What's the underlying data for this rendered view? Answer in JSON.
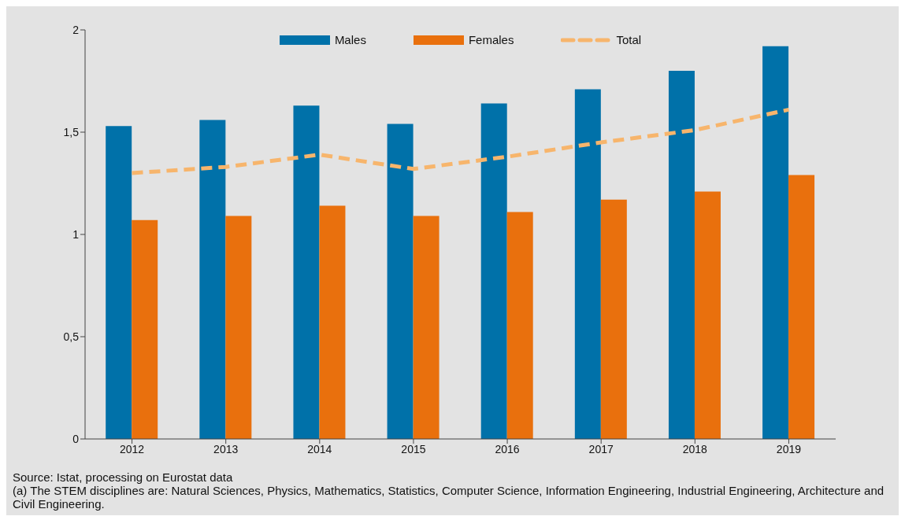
{
  "chart_data": {
    "type": "bar",
    "categories": [
      "2012",
      "2013",
      "2014",
      "2015",
      "2016",
      "2017",
      "2018",
      "2019"
    ],
    "series": [
      {
        "name": "Males",
        "color": "#0071a9",
        "values": [
          1.53,
          1.56,
          1.63,
          1.54,
          1.64,
          1.71,
          1.8,
          1.92
        ]
      },
      {
        "name": "Females",
        "color": "#e9700d",
        "values": [
          1.07,
          1.09,
          1.14,
          1.09,
          1.11,
          1.17,
          1.21,
          1.29
        ]
      },
      {
        "name": "Total",
        "type": "line",
        "color": "#f7b56c",
        "line_style": "dashed",
        "marker": "none",
        "values": [
          1.3,
          1.33,
          1.39,
          1.32,
          1.38,
          1.45,
          1.51,
          1.61
        ]
      }
    ],
    "ylim": [
      0,
      2
    ],
    "yticks": [
      0,
      {
        "value": 0.5,
        "label": "0,5"
      },
      1,
      {
        "value": 1.5,
        "label": "1,5"
      },
      2
    ],
    "grid": false,
    "legend": "top",
    "annotations": [
      "Source: Istat, processing on Eurostat data",
      "(a) The STEM disciplines are: Natural Sciences, Physics, Mathematics, Statistics, Computer Science, Information Engineering, Industrial Engineering, Architecture and Civil Engineering."
    ]
  }
}
